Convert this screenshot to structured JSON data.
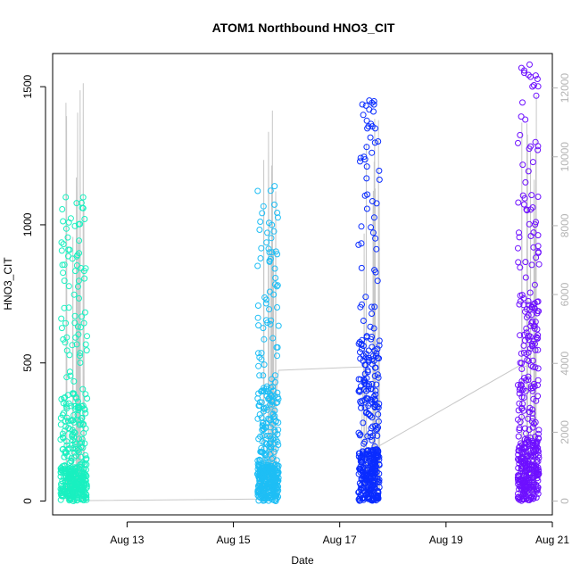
{
  "chart_data": {
    "type": "scatter",
    "title": "ATOM1 Northbound HNO3_CIT",
    "xlabel": "Date",
    "ylabel": "HNO3_CIT",
    "xlim_days": [
      11.6,
      21.0
    ],
    "ylim": [
      -50,
      1620
    ],
    "ylim_right": [
      -400,
      13000
    ],
    "x_ticks": [
      {
        "day": 13,
        "label": "Aug 13"
      },
      {
        "day": 15,
        "label": "Aug 15"
      },
      {
        "day": 17,
        "label": "Aug 17"
      },
      {
        "day": 19,
        "label": "Aug 19"
      },
      {
        "day": 21,
        "label": "Aug 21"
      }
    ],
    "y_ticks": [
      {
        "value": 0,
        "label": "0"
      },
      {
        "value": 500,
        "label": "500"
      },
      {
        "value": 1000,
        "label": "1000"
      },
      {
        "value": 1500,
        "label": "1500"
      }
    ],
    "y_right_ticks": [
      {
        "value": 0,
        "label": "0"
      },
      {
        "value": 2000,
        "label": "2000"
      },
      {
        "value": 4000,
        "label": "4000"
      },
      {
        "value": 6000,
        "label": "6000"
      },
      {
        "value": 8000,
        "label": "8000"
      },
      {
        "value": 10000,
        "label": "10000"
      },
      {
        "value": 12000,
        "label": "12000"
      }
    ],
    "grid": false,
    "series": [
      {
        "color": "#19f0c0",
        "x_range": [
          11.75,
          12.25
        ],
        "y_max": 1100,
        "y_typical": 150
      },
      {
        "color": "#1ebef5",
        "x_range": [
          15.45,
          15.85
        ],
        "y_max": 1140,
        "y_typical": 160
      },
      {
        "color": "#0a2cff",
        "x_range": [
          17.35,
          17.75
        ],
        "y_max": 1450,
        "y_typical": 230
      },
      {
        "color": "#6e10ff",
        "x_range": [
          20.35,
          20.75
        ],
        "y_max": 1580,
        "y_typical": 280
      }
    ],
    "secondary_line": {
      "color": "#c8c8c8",
      "points": [
        [
          11.95,
          10
        ],
        [
          12.0,
          12
        ],
        [
          15.5,
          60
        ],
        [
          15.6,
          80
        ],
        [
          15.85,
          3800
        ],
        [
          17.45,
          3900
        ],
        [
          17.4,
          1300
        ],
        [
          20.4,
          3950
        ],
        [
          20.55,
          3900
        ]
      ],
      "spikes": [
        {
          "x_range": [
            11.85,
            12.2
          ],
          "max": 12500
        },
        {
          "x_range": [
            15.45,
            15.85
          ],
          "max": 12800
        },
        {
          "x_range": [
            17.45,
            17.75
          ],
          "max": 12500
        },
        {
          "x_range": [
            20.4,
            20.7
          ],
          "max": 12600
        }
      ]
    }
  }
}
